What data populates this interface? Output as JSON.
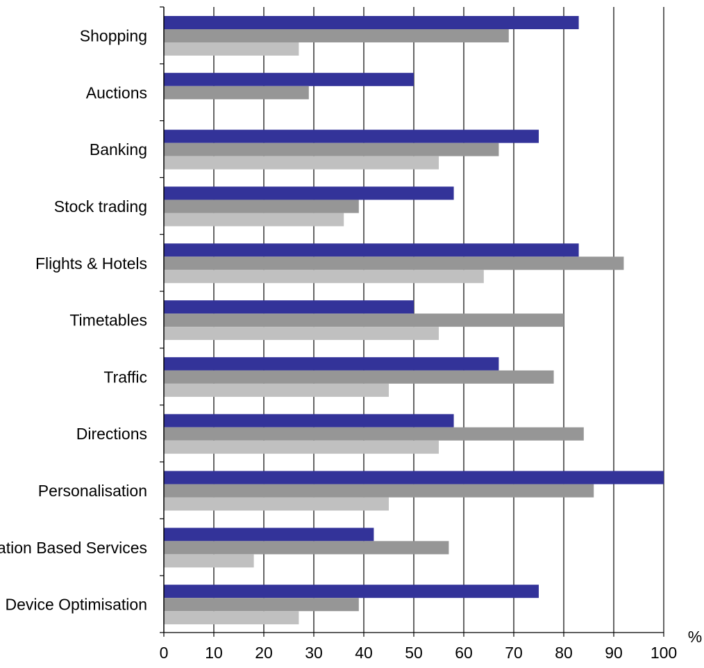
{
  "chart_data": {
    "type": "bar",
    "orientation": "horizontal",
    "categories": [
      "Shopping",
      "Auctions",
      "Banking",
      "Stock trading",
      "Flights & Hotels",
      "Timetables",
      "Traffic",
      "Directions",
      "Personalisation",
      "Location Based Services",
      "Device Optimisation"
    ],
    "series": [
      {
        "color": "#333399",
        "values": [
          83,
          50,
          75,
          58,
          83,
          50,
          67,
          58,
          100,
          42,
          75
        ]
      },
      {
        "color": "#969696",
        "values": [
          69,
          29,
          67,
          39,
          92,
          80,
          78,
          84,
          86,
          57,
          39
        ]
      },
      {
        "color": "#c0c0c0",
        "values": [
          27,
          0,
          55,
          36,
          64,
          55,
          45,
          55,
          45,
          18,
          27
        ]
      }
    ],
    "x_unit": "%",
    "xlim": [
      0,
      100
    ],
    "x_ticks": [
      0,
      10,
      20,
      30,
      40,
      50,
      60,
      70,
      80,
      90,
      100
    ],
    "grid": "vertical",
    "legend": "none"
  }
}
